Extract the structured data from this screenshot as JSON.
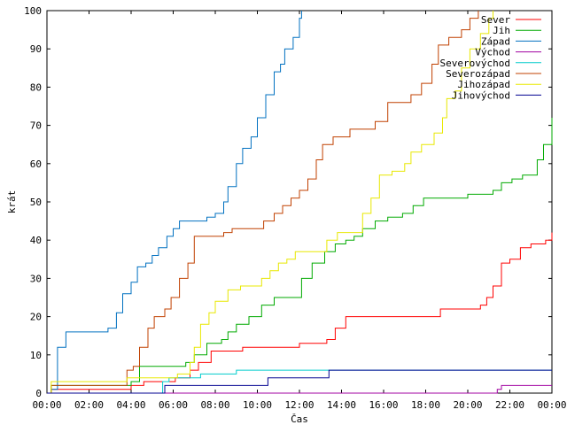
{
  "chart_data": {
    "type": "line",
    "title": "",
    "xlabel": "Čas",
    "ylabel": "krát",
    "xlim": [
      0,
      24
    ],
    "ylim": [
      0,
      100
    ],
    "x_ticks": [
      "00:00",
      "02:00",
      "04:00",
      "06:00",
      "08:00",
      "10:00",
      "12:00",
      "14:00",
      "16:00",
      "18:00",
      "20:00",
      "22:00",
      "00:00"
    ],
    "y_ticks": [
      0,
      10,
      20,
      30,
      40,
      50,
      60,
      70,
      80,
      90,
      100
    ],
    "grid": false,
    "legend_position": "top-right",
    "series": [
      {
        "name": "Sever",
        "color": "#ff0000",
        "points": [
          [
            0,
            0
          ],
          [
            0.2,
            1
          ],
          [
            3.6,
            1
          ],
          [
            4.0,
            2
          ],
          [
            4.6,
            3
          ],
          [
            6.1,
            4
          ],
          [
            6.8,
            6
          ],
          [
            7.2,
            8
          ],
          [
            7.8,
            11
          ],
          [
            8.7,
            11
          ],
          [
            9.3,
            12
          ],
          [
            11.2,
            12
          ],
          [
            12.0,
            13
          ],
          [
            13.3,
            14
          ],
          [
            13.7,
            17
          ],
          [
            14.2,
            20
          ],
          [
            18.3,
            20
          ],
          [
            18.7,
            22
          ],
          [
            20.6,
            23
          ],
          [
            20.9,
            25
          ],
          [
            21.2,
            28
          ],
          [
            21.6,
            34
          ],
          [
            22.0,
            35
          ],
          [
            22.5,
            38
          ],
          [
            23.0,
            39
          ],
          [
            23.7,
            40
          ],
          [
            24,
            42
          ]
        ]
      },
      {
        "name": "Jih",
        "color": "#00aa00",
        "points": [
          [
            0,
            0
          ],
          [
            0.2,
            2
          ],
          [
            3.8,
            2
          ],
          [
            4.0,
            3
          ],
          [
            4.4,
            7
          ],
          [
            6.6,
            8
          ],
          [
            7.0,
            10
          ],
          [
            7.6,
            13
          ],
          [
            8.3,
            14
          ],
          [
            8.6,
            16
          ],
          [
            9.0,
            18
          ],
          [
            9.6,
            20
          ],
          [
            10.2,
            23
          ],
          [
            10.8,
            25
          ],
          [
            11.6,
            25
          ],
          [
            12.1,
            30
          ],
          [
            12.6,
            34
          ],
          [
            13.2,
            37
          ],
          [
            13.7,
            39
          ],
          [
            14.2,
            40
          ],
          [
            14.6,
            41
          ],
          [
            15.0,
            43
          ],
          [
            15.6,
            45
          ],
          [
            16.2,
            46
          ],
          [
            16.9,
            47
          ],
          [
            17.4,
            49
          ],
          [
            17.9,
            51
          ],
          [
            20.0,
            52
          ],
          [
            21.2,
            53
          ],
          [
            21.6,
            55
          ],
          [
            22.1,
            56
          ],
          [
            22.6,
            57
          ],
          [
            23.0,
            57
          ],
          [
            23.3,
            61
          ],
          [
            23.6,
            65
          ],
          [
            24,
            72
          ]
        ]
      },
      {
        "name": "Západ",
        "color": "#0070c0",
        "points": [
          [
            0,
            0
          ],
          [
            0.2,
            1
          ],
          [
            0.5,
            12
          ],
          [
            0.9,
            16
          ],
          [
            2.9,
            17
          ],
          [
            3.3,
            21
          ],
          [
            3.6,
            26
          ],
          [
            4.0,
            29
          ],
          [
            4.3,
            33
          ],
          [
            4.7,
            34
          ],
          [
            5.0,
            36
          ],
          [
            5.3,
            38
          ],
          [
            5.7,
            41
          ],
          [
            6.0,
            43
          ],
          [
            6.3,
            45
          ],
          [
            7.2,
            45
          ],
          [
            7.6,
            46
          ],
          [
            8.0,
            47
          ],
          [
            8.4,
            50
          ],
          [
            8.6,
            54
          ],
          [
            9.0,
            60
          ],
          [
            9.3,
            64
          ],
          [
            9.7,
            67
          ],
          [
            10.0,
            72
          ],
          [
            10.4,
            78
          ],
          [
            10.8,
            84
          ],
          [
            11.1,
            86
          ],
          [
            11.3,
            90
          ],
          [
            11.7,
            93
          ],
          [
            12.0,
            98
          ],
          [
            12.1,
            100
          ]
        ]
      },
      {
        "name": "Východ",
        "color": "#a000a0",
        "points": [
          [
            0,
            0
          ],
          [
            21.2,
            0
          ],
          [
            21.4,
            1
          ],
          [
            21.6,
            2
          ],
          [
            24,
            2
          ]
        ]
      },
      {
        "name": "Severovýchod",
        "color": "#00cccc",
        "points": [
          [
            0,
            0
          ],
          [
            5.2,
            0
          ],
          [
            5.5,
            3
          ],
          [
            5.8,
            4
          ],
          [
            7.3,
            5
          ],
          [
            9.0,
            6
          ],
          [
            13.4,
            6
          ],
          [
            24,
            6
          ]
        ]
      },
      {
        "name": "Severozápad",
        "color": "#c04000",
        "points": [
          [
            0,
            0
          ],
          [
            0.2,
            2
          ],
          [
            3.6,
            2
          ],
          [
            3.8,
            6
          ],
          [
            4.1,
            7
          ],
          [
            4.4,
            12
          ],
          [
            4.8,
            17
          ],
          [
            5.1,
            20
          ],
          [
            5.6,
            22
          ],
          [
            5.9,
            25
          ],
          [
            6.3,
            30
          ],
          [
            6.7,
            34
          ],
          [
            7.0,
            41
          ],
          [
            8.4,
            42
          ],
          [
            8.8,
            43
          ],
          [
            10.3,
            45
          ],
          [
            10.8,
            47
          ],
          [
            11.2,
            49
          ],
          [
            11.6,
            51
          ],
          [
            12.0,
            53
          ],
          [
            12.4,
            56
          ],
          [
            12.8,
            61
          ],
          [
            13.1,
            65
          ],
          [
            13.6,
            67
          ],
          [
            14.4,
            69
          ],
          [
            15.6,
            71
          ],
          [
            16.2,
            76
          ],
          [
            17.3,
            78
          ],
          [
            17.8,
            81
          ],
          [
            18.3,
            86
          ],
          [
            18.6,
            91
          ],
          [
            19.1,
            93
          ],
          [
            19.7,
            95
          ],
          [
            20.1,
            98
          ],
          [
            20.5,
            100
          ]
        ]
      },
      {
        "name": "Jihozápad",
        "color": "#e8e800",
        "points": [
          [
            0,
            0
          ],
          [
            0.2,
            3
          ],
          [
            3.4,
            3
          ],
          [
            3.8,
            4
          ],
          [
            6.2,
            5
          ],
          [
            6.8,
            8
          ],
          [
            7.0,
            12
          ],
          [
            7.3,
            18
          ],
          [
            7.7,
            21
          ],
          [
            8.0,
            24
          ],
          [
            8.6,
            27
          ],
          [
            9.2,
            28
          ],
          [
            10.2,
            30
          ],
          [
            10.6,
            32
          ],
          [
            11.0,
            34
          ],
          [
            11.4,
            35
          ],
          [
            11.8,
            37
          ],
          [
            12.6,
            37
          ],
          [
            13.3,
            40
          ],
          [
            13.8,
            42
          ],
          [
            14.6,
            42
          ],
          [
            15.0,
            47
          ],
          [
            15.4,
            51
          ],
          [
            15.8,
            57
          ],
          [
            16.4,
            58
          ],
          [
            17.0,
            60
          ],
          [
            17.3,
            63
          ],
          [
            17.8,
            65
          ],
          [
            18.4,
            68
          ],
          [
            18.8,
            72
          ],
          [
            19.0,
            77
          ],
          [
            19.4,
            79
          ],
          [
            19.7,
            85
          ],
          [
            20.1,
            90
          ],
          [
            20.6,
            94
          ],
          [
            21.0,
            98
          ],
          [
            21.2,
            100
          ]
        ]
      },
      {
        "name": "Jihovýchod",
        "color": "#000090",
        "points": [
          [
            0,
            0
          ],
          [
            5.5,
            0
          ],
          [
            5.6,
            2
          ],
          [
            10.2,
            2
          ],
          [
            10.5,
            4
          ],
          [
            13.2,
            4
          ],
          [
            13.4,
            6
          ],
          [
            24,
            6
          ]
        ]
      }
    ]
  }
}
